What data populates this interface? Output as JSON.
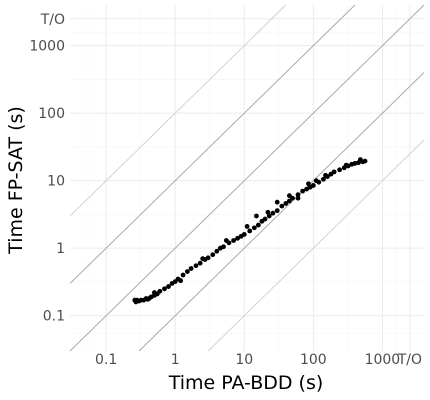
{
  "chart_data": {
    "type": "scatter",
    "xlabel": "Time PA-BDD (s)",
    "ylabel": "Time FP-SAT (s)",
    "xscale": "log",
    "yscale": "log",
    "xlim": [
      0.03,
      4000
    ],
    "ylim": [
      0.03,
      4000
    ],
    "grid": true,
    "x_ticks": [
      {
        "value": 0.1,
        "label": "0.1"
      },
      {
        "value": 1,
        "label": "1"
      },
      {
        "value": 10,
        "label": "10"
      },
      {
        "value": 100,
        "label": "100"
      },
      {
        "value": 1000,
        "label": "1000"
      },
      {
        "value": 2500,
        "label": "T/O"
      }
    ],
    "y_ticks": [
      {
        "value": 0.1,
        "label": "0.1"
      },
      {
        "value": 1,
        "label": "1"
      },
      {
        "value": 10,
        "label": "10"
      },
      {
        "value": 100,
        "label": "100"
      },
      {
        "value": 1000,
        "label": "1000"
      },
      {
        "value": 2500,
        "label": "T/O"
      }
    ],
    "reference_lines": [
      {
        "ratio": 0.01,
        "color": "#d3d3d3"
      },
      {
        "ratio": 0.1,
        "color": "#a9a9a9"
      },
      {
        "ratio": 1,
        "color": "#a9a9a9"
      },
      {
        "ratio": 10,
        "color": "#a9a9a9"
      },
      {
        "ratio": 100,
        "color": "#d3d3d3"
      }
    ],
    "point_color": "#000000",
    "points": [
      [
        0.26,
        0.17
      ],
      [
        0.27,
        0.16
      ],
      [
        0.28,
        0.17
      ],
      [
        0.3,
        0.165
      ],
      [
        0.32,
        0.17
      ],
      [
        0.35,
        0.17
      ],
      [
        0.38,
        0.18
      ],
      [
        0.4,
        0.175
      ],
      [
        0.42,
        0.18
      ],
      [
        0.45,
        0.19
      ],
      [
        0.5,
        0.2
      ],
      [
        0.55,
        0.21
      ],
      [
        0.6,
        0.23
      ],
      [
        0.7,
        0.25
      ],
      [
        0.8,
        0.27
      ],
      [
        0.9,
        0.3
      ],
      [
        1.0,
        0.32
      ],
      [
        1.1,
        0.35
      ],
      [
        1.3,
        0.4
      ],
      [
        1.5,
        0.45
      ],
      [
        1.7,
        0.5
      ],
      [
        2.0,
        0.55
      ],
      [
        2.3,
        0.6
      ],
      [
        2.7,
        0.68
      ],
      [
        3.0,
        0.72
      ],
      [
        3.5,
        0.8
      ],
      [
        4.0,
        0.9
      ],
      [
        4.5,
        1.0
      ],
      [
        5.0,
        1.05
      ],
      [
        6.0,
        1.2
      ],
      [
        7.0,
        1.3
      ],
      [
        8.0,
        1.4
      ],
      [
        9.0,
        1.5
      ],
      [
        10,
        1.6
      ],
      [
        12,
        1.8
      ],
      [
        14,
        2.0
      ],
      [
        16,
        2.2
      ],
      [
        18,
        2.5
      ],
      [
        20,
        2.7
      ],
      [
        23,
        3.0
      ],
      [
        26,
        3.3
      ],
      [
        30,
        3.6
      ],
      [
        35,
        4.2
      ],
      [
        40,
        4.6
      ],
      [
        45,
        5.0
      ],
      [
        50,
        5.5
      ],
      [
        60,
        6.2
      ],
      [
        70,
        7.0
      ],
      [
        80,
        7.5
      ],
      [
        90,
        8.0
      ],
      [
        100,
        8.5
      ],
      [
        120,
        9.5
      ],
      [
        140,
        10.5
      ],
      [
        160,
        11.5
      ],
      [
        180,
        12.5
      ],
      [
        200,
        13.5
      ],
      [
        240,
        14.5
      ],
      [
        280,
        15.5
      ],
      [
        320,
        16.5
      ],
      [
        360,
        17.5
      ],
      [
        400,
        18.0
      ],
      [
        450,
        18.5
      ],
      [
        520,
        19.0
      ],
      [
        560,
        19.5
      ],
      [
        0.5,
        0.22
      ],
      [
        1.2,
        0.33
      ],
      [
        2.5,
        0.7
      ],
      [
        5.5,
        1.3
      ],
      [
        11,
        2.1
      ],
      [
        22,
        3.4
      ],
      [
        45,
        6.0
      ],
      [
        85,
        9.0
      ],
      [
        150,
        12.0
      ],
      [
        300,
        17.0
      ],
      [
        480,
        20.5
      ],
      [
        15,
        3.0
      ],
      [
        30,
        4.8
      ],
      [
        60,
        5.5
      ],
      [
        110,
        10.0
      ]
    ]
  }
}
